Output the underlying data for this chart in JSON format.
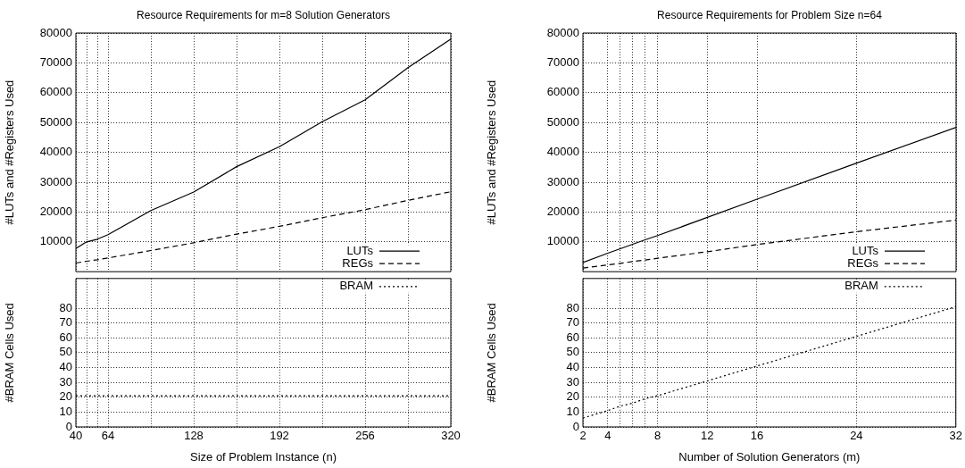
{
  "chart_data": [
    {
      "type": "line",
      "title": "Resource Requirements for m=8 Solution Generators",
      "ylabel": "#LUTs and #Registers Used",
      "xlim": [
        40,
        320
      ],
      "xticks": [
        40,
        {
          "value": 48,
          "label": null
        },
        {
          "value": 56,
          "label": null
        },
        64,
        {
          "value": 96,
          "label": null
        },
        128,
        {
          "value": 160,
          "label": null
        },
        192,
        {
          "value": 224,
          "label": null
        },
        256,
        {
          "value": 288,
          "label": null
        },
        320
      ],
      "ylim": [
        0,
        80000
      ],
      "yticks": [
        10000,
        20000,
        30000,
        40000,
        50000,
        60000,
        70000,
        80000
      ],
      "tick_labels": "y",
      "grid": true,
      "legend": "bottom right",
      "marker": "none",
      "x": [
        40,
        48,
        56,
        64,
        96,
        128,
        160,
        192,
        224,
        256,
        288,
        320
      ],
      "series": [
        {
          "name": "LUTs",
          "color": "#000000",
          "line_style": "solid",
          "values": [
            7800,
            10000,
            10900,
            12400,
            20500,
            26700,
            35200,
            41900,
            50300,
            57600,
            68400,
            78000
          ]
        },
        {
          "name": "REGs",
          "color": "#000000",
          "line_style": "dashed",
          "values": [
            2900,
            3500,
            4000,
            4600,
            7100,
            9700,
            12600,
            15200,
            18100,
            20800,
            23900,
            26800
          ]
        }
      ]
    },
    {
      "type": "line",
      "xlabel": "Size of Problem Instance (n)",
      "ylabel": "#BRAM Cells Used",
      "xlim": [
        40,
        320
      ],
      "xticks": [
        40,
        {
          "value": 48,
          "label": null
        },
        {
          "value": 56,
          "label": null
        },
        64,
        {
          "value": 96,
          "label": null
        },
        128,
        {
          "value": 160,
          "label": null
        },
        192,
        {
          "value": 224,
          "label": null
        },
        256,
        {
          "value": 288,
          "label": null
        },
        320
      ],
      "ylim": [
        0,
        100
      ],
      "yticks": [
        0,
        10,
        20,
        30,
        40,
        50,
        60,
        70,
        80
      ],
      "grid": true,
      "legend": "top right",
      "marker": "none",
      "x": [
        40,
        48,
        56,
        64,
        96,
        128,
        160,
        192,
        224,
        256,
        288,
        320
      ],
      "series": [
        {
          "name": "BRAM",
          "color": "#000000",
          "line_style": "dotted",
          "values": [
            21,
            21,
            21,
            21,
            21,
            21,
            21,
            21,
            21,
            21,
            21,
            21
          ]
        }
      ]
    },
    {
      "type": "line",
      "title": "Resource Requirements for Problem Size n=64",
      "ylabel": "#LUTs and #Registers Used",
      "xlim": [
        2,
        32
      ],
      "xticks": [
        2,
        4,
        {
          "value": 5,
          "label": null
        },
        {
          "value": 6,
          "label": null
        },
        {
          "value": 7,
          "label": null
        },
        8,
        12,
        16,
        24,
        32
      ],
      "ylim": [
        0,
        80000
      ],
      "yticks": [
        10000,
        20000,
        30000,
        40000,
        50000,
        60000,
        70000,
        80000
      ],
      "tick_labels": "y",
      "grid": true,
      "legend": "bottom right",
      "marker": "none",
      "x": [
        2,
        4,
        5,
        6,
        7,
        8,
        12,
        16,
        24,
        32
      ],
      "series": [
        {
          "name": "LUTs",
          "color": "#000000",
          "line_style": "solid",
          "values": [
            3100,
            6200,
            7700,
            9200,
            10700,
            12100,
            18200,
            24300,
            36400,
            48400
          ]
        },
        {
          "name": "REGs",
          "color": "#000000",
          "line_style": "dashed",
          "values": [
            1200,
            2300,
            2800,
            3400,
            3900,
            4500,
            6700,
            9100,
            13400,
            17300
          ]
        }
      ]
    },
    {
      "type": "line",
      "xlabel": "Number of Solution Generators (m)",
      "ylabel": "#BRAM Cells Used",
      "xlim": [
        2,
        32
      ],
      "xticks": [
        2,
        4,
        {
          "value": 5,
          "label": null
        },
        {
          "value": 6,
          "label": null
        },
        {
          "value": 7,
          "label": null
        },
        8,
        12,
        16,
        24,
        32
      ],
      "ylim": [
        0,
        100
      ],
      "yticks": [
        0,
        10,
        20,
        30,
        40,
        50,
        60,
        70,
        80
      ],
      "grid": true,
      "legend": "top right",
      "marker": "none",
      "x": [
        2,
        4,
        5,
        6,
        7,
        8,
        12,
        16,
        24,
        32
      ],
      "series": [
        {
          "name": "BRAM",
          "color": "#000000",
          "line_style": "dotted",
          "values": [
            6,
            11,
            14,
            16,
            19,
            21,
            31,
            41,
            61,
            81
          ]
        }
      ]
    }
  ]
}
